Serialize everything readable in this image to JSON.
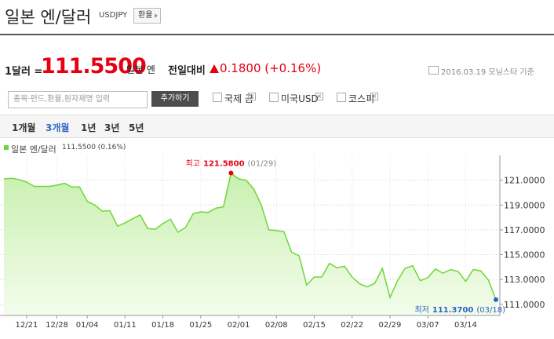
{
  "header": {
    "title": "일본 엔/달러",
    "code": "USDJPY",
    "button": "환율"
  },
  "quote": {
    "per": "1달러 =",
    "price": "111.5500",
    "unit": "일본 엔",
    "compare": "전일대비",
    "change": "0.1800 (+0.16%)",
    "asof": "2016.03.19 모닝스타 기준"
  },
  "search": {
    "placeholder": "종목·펀드,환율,원자재명 입력",
    "button": "추가하기",
    "compares": [
      "국제 금",
      "미국USD",
      "코스피"
    ]
  },
  "tabs": {
    "items": [
      "1개월",
      "3개월",
      "1년",
      "3년",
      "5년"
    ],
    "selected": 1
  },
  "chart_data": {
    "type": "area",
    "legend_text": "111.5500 (0.16%)",
    "high_label": "최고",
    "high_value_label": "121.5800",
    "high_date": "(01/29)",
    "low_label": "최저",
    "low_value_label": "111.3700",
    "low_date": "(03/18)",
    "categories": [
      null,
      null,
      null,
      "12/21",
      null,
      null,
      null,
      "12/28",
      null,
      null,
      null,
      "01/04",
      null,
      null,
      null,
      null,
      "01/11",
      null,
      null,
      null,
      null,
      "01/18",
      null,
      null,
      null,
      null,
      "01/25",
      null,
      null,
      null,
      null,
      "02/01",
      null,
      null,
      null,
      null,
      "02/08",
      null,
      null,
      null,
      null,
      "02/15",
      null,
      null,
      null,
      null,
      "02/22",
      null,
      null,
      null,
      null,
      "02/29",
      null,
      null,
      null,
      null,
      "03/07",
      null,
      null,
      null,
      null,
      "03/14",
      null,
      null,
      null,
      null
    ],
    "series": [
      {
        "name": "일본 엔/달러",
        "color": "#6fd63a",
        "values": [
          121.1,
          121.15,
          121.05,
          120.85,
          120.5,
          120.5,
          120.5,
          120.6,
          120.75,
          120.45,
          120.45,
          119.3,
          119.0,
          118.5,
          118.55,
          117.3,
          117.55,
          117.9,
          118.2,
          117.1,
          117.05,
          117.5,
          117.85,
          116.8,
          117.2,
          118.3,
          118.45,
          118.4,
          118.75,
          118.85,
          121.58,
          121.1,
          121.0,
          120.3,
          119.0,
          117.0,
          116.95,
          116.85,
          115.2,
          114.9,
          112.55,
          113.2,
          113.2,
          114.3,
          113.95,
          114.05,
          113.2,
          112.65,
          112.4,
          112.7,
          113.9,
          111.55,
          112.9,
          113.9,
          114.1,
          112.9,
          113.15,
          113.85,
          113.5,
          113.8,
          113.65,
          112.85,
          113.8,
          113.7,
          112.95,
          111.37
        ]
      }
    ],
    "ylim": [
      110.1,
      123.0
    ],
    "yticks": [
      {
        "value": 111,
        "label": "111.0000"
      },
      {
        "value": 113,
        "label": "113.0000"
      },
      {
        "value": 115,
        "label": "115.0000"
      },
      {
        "value": 117,
        "label": "117.0000"
      },
      {
        "value": 119,
        "label": "119.0000"
      },
      {
        "value": 121,
        "label": "121.0000"
      }
    ],
    "grid": true,
    "high_color": "#e60012",
    "low_color": "#2a62c9"
  }
}
